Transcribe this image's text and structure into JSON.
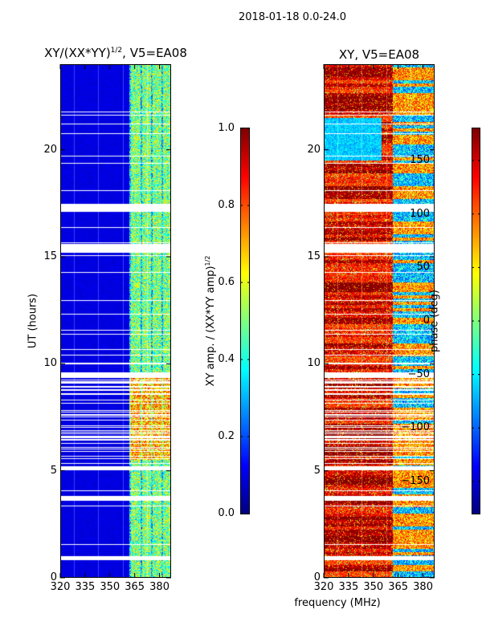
{
  "suptitle": "2018-01-18 0.0-24.0",
  "chart_data": [
    {
      "type": "heatmap",
      "title": "XY/(XX*YY)^1/2, V5=EA08",
      "title_base": "XY/(XX*YY)",
      "title_exp": "1/2",
      "title_tail": ", V5=EA08",
      "xlabel": "",
      "ylabel": "UT (hours)",
      "xlim": [
        320,
        387
      ],
      "ylim": [
        0,
        24
      ],
      "xticks": [
        320,
        335,
        350,
        365,
        380
      ],
      "yticks": [
        0,
        5,
        10,
        15,
        20
      ],
      "colorbar": {
        "label_base": "XY amp. / (XX*YY amp)",
        "label_exp": "1/2",
        "range": [
          0,
          1
        ],
        "ticks": [
          "0.0",
          "0.2",
          "0.4",
          "0.6",
          "0.8",
          "1.0"
        ],
        "tick_values": [
          0,
          0.2,
          0.4,
          0.6,
          0.8,
          1.0
        ],
        "colormap": "jet"
      }
    },
    {
      "type": "heatmap",
      "title": "XY, V5=EA08",
      "xlabel": "frequency (MHz)",
      "ylabel": "",
      "xlim": [
        320,
        387
      ],
      "ylim": [
        0,
        24
      ],
      "xticks": [
        320,
        335,
        350,
        365,
        380
      ],
      "yticks": [
        0,
        5,
        10,
        15,
        20
      ],
      "colorbar": {
        "label": "phase (deg)",
        "range": [
          -180,
          180
        ],
        "ticks": [
          "−150",
          "−100",
          "−50",
          "0",
          "50",
          "100",
          "150"
        ],
        "tick_values": [
          -150,
          -100,
          -50,
          0,
          50,
          100,
          150
        ],
        "colormap": "jet"
      }
    }
  ]
}
